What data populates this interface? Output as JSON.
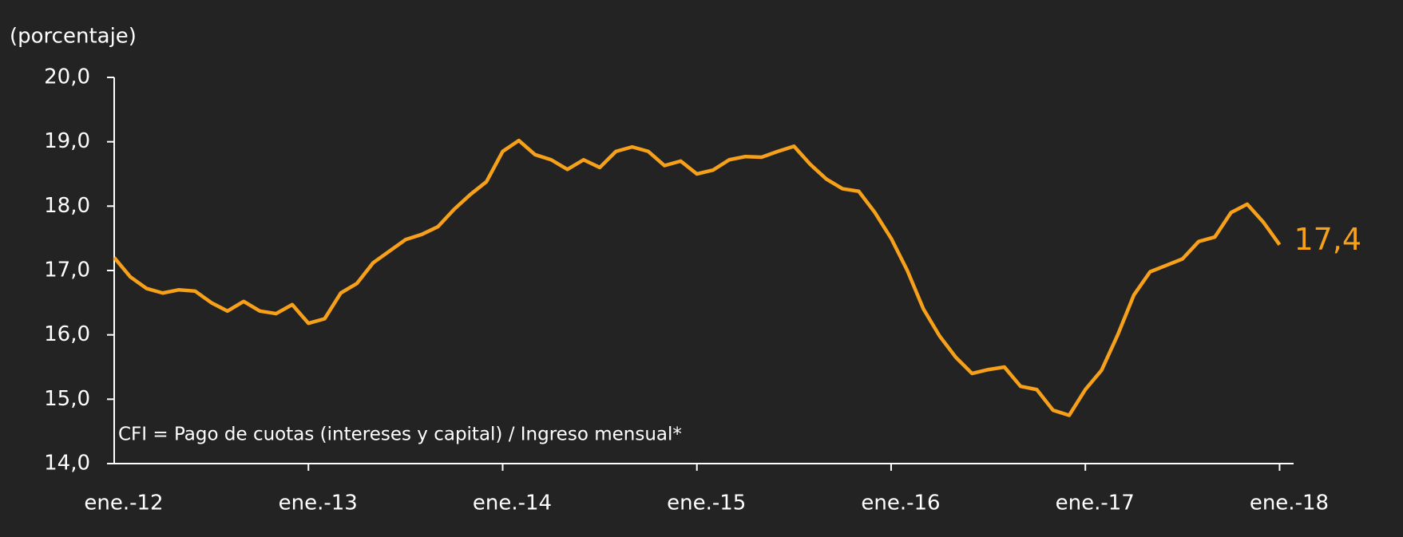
{
  "chart_data": {
    "type": "line",
    "y_axis_label": "(porcentaje)",
    "annotation": "CFI = Pago de cuotas (intereses y capital) / Ingreso mensual*",
    "categories": [
      "ene.-12",
      null,
      null,
      null,
      null,
      null,
      null,
      null,
      null,
      null,
      null,
      null,
      "ene.-13",
      null,
      null,
      null,
      null,
      null,
      null,
      null,
      null,
      null,
      null,
      null,
      "ene.-14",
      null,
      null,
      null,
      null,
      null,
      null,
      null,
      null,
      null,
      null,
      null,
      "ene.-15",
      null,
      null,
      null,
      null,
      null,
      null,
      null,
      null,
      null,
      null,
      null,
      "ene.-16",
      null,
      null,
      null,
      null,
      null,
      null,
      null,
      null,
      null,
      null,
      null,
      "ene.-17",
      null,
      null,
      null,
      null,
      null,
      null,
      null,
      null,
      null,
      null,
      null,
      "ene.-18"
    ],
    "series": [
      {
        "name": "CFI",
        "color": "#f7a11a",
        "values": [
          17.2,
          16.9,
          16.72,
          16.65,
          16.7,
          16.68,
          16.5,
          16.37,
          16.52,
          16.37,
          16.33,
          16.47,
          16.18,
          16.25,
          16.65,
          16.8,
          17.12,
          17.3,
          17.48,
          17.56,
          17.68,
          17.95,
          18.18,
          18.38,
          18.85,
          19.02,
          18.8,
          18.72,
          18.57,
          18.72,
          18.6,
          18.85,
          18.92,
          18.85,
          18.63,
          18.7,
          18.5,
          18.56,
          18.72,
          18.77,
          18.76,
          18.85,
          18.93,
          18.65,
          18.42,
          18.27,
          18.23,
          17.9,
          17.5,
          17.0,
          16.4,
          15.98,
          15.65,
          15.4,
          15.46,
          15.5,
          15.2,
          15.15,
          14.83,
          14.75,
          15.15,
          15.45,
          16.0,
          16.62,
          16.98,
          17.08,
          17.18,
          17.45,
          17.52,
          17.9,
          18.03,
          17.75,
          17.4
        ],
        "value_labels": [
          null,
          null,
          null,
          null,
          null,
          null,
          null,
          null,
          null,
          null,
          null,
          null,
          null,
          null,
          null,
          null,
          null,
          null,
          null,
          null,
          null,
          null,
          null,
          null,
          null,
          null,
          null,
          null,
          null,
          null,
          null,
          null,
          null,
          null,
          null,
          null,
          null,
          null,
          null,
          null,
          null,
          null,
          null,
          null,
          null,
          null,
          null,
          null,
          null,
          null,
          null,
          null,
          null,
          null,
          null,
          null,
          null,
          null,
          null,
          null,
          null,
          null,
          null,
          null,
          null,
          null,
          null,
          null,
          null,
          null,
          null,
          null,
          "17,4"
        ]
      }
    ],
    "ylim": [
      14,
      20
    ],
    "yticks": [
      {
        "value": 14,
        "label": "14,0"
      },
      {
        "value": 15,
        "label": "15,0"
      },
      {
        "value": 16,
        "label": "16,0"
      },
      {
        "value": 17,
        "label": "17,0"
      },
      {
        "value": 18,
        "label": "18,0"
      },
      {
        "value": 19,
        "label": "19,0"
      },
      {
        "value": 20,
        "label": "20,0"
      }
    ],
    "grid": false
  }
}
